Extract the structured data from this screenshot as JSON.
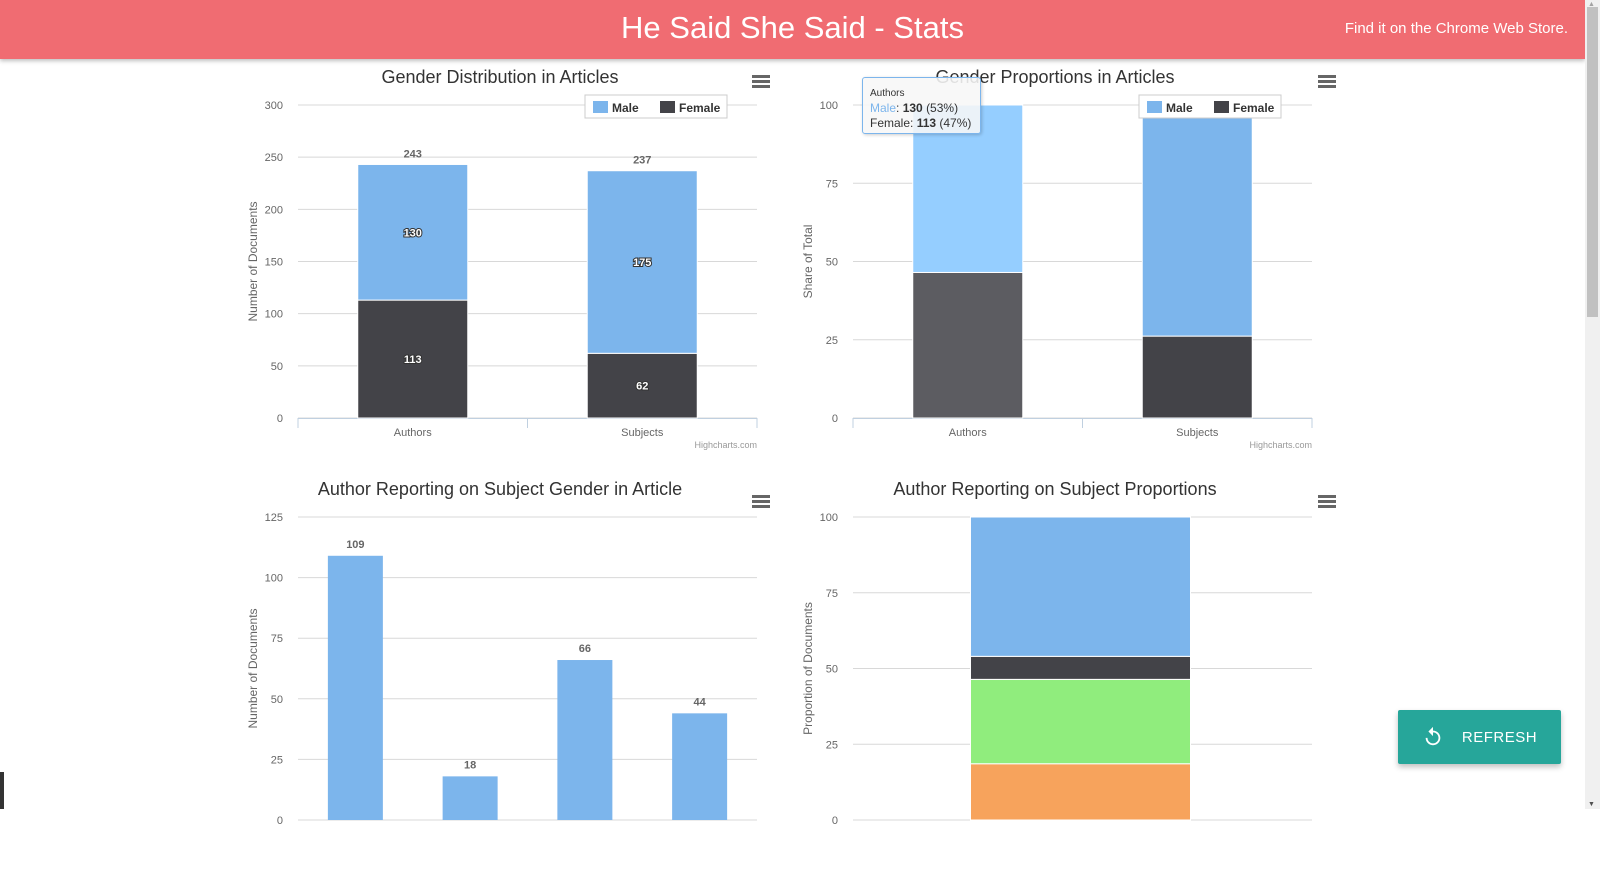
{
  "header": {
    "title": "He Said She Said - Stats",
    "store_link": "Find it on the Chrome Web Store."
  },
  "refresh_button": {
    "label": "REFRESH",
    "icon": "refresh-icon"
  },
  "credits": "Highcharts.com",
  "colors": {
    "header": "#f06c72",
    "male": "#7cb5ec",
    "female": "#434348",
    "green": "#90ed7d",
    "orange": "#f7a35c",
    "refresh": "#26a69a"
  },
  "tooltip": {
    "header": "Authors",
    "rows": [
      {
        "series": "Male",
        "value": "130",
        "pct": "(53%)"
      },
      {
        "series": "Female",
        "value": "113",
        "pct": "(47%)"
      }
    ]
  },
  "chart_data": [
    {
      "type": "bar",
      "stacking": "normal",
      "title": "Gender Distribution in Articles",
      "xlabel": "",
      "ylabel": "Number of Documents",
      "ylim": [
        0,
        300
      ],
      "yticks": [
        0,
        50,
        100,
        150,
        200,
        250,
        300
      ],
      "categories": [
        "Authors",
        "Subjects"
      ],
      "series": [
        {
          "name": "Male",
          "values": [
            130,
            175
          ]
        },
        {
          "name": "Female",
          "values": [
            113,
            62
          ]
        }
      ],
      "totals": [
        243,
        237
      ],
      "legend": "top-right",
      "grid": true
    },
    {
      "type": "bar",
      "stacking": "percent",
      "title": "Gender Proportions in Articles",
      "xlabel": "",
      "ylabel": "Share of Total",
      "ylim": [
        0,
        100
      ],
      "yticks": [
        0,
        25,
        50,
        75,
        100
      ],
      "categories": [
        "Authors",
        "Subjects"
      ],
      "series": [
        {
          "name": "Male",
          "values": [
            130,
            175
          ]
        },
        {
          "name": "Female",
          "values": [
            113,
            62
          ]
        }
      ],
      "legend": "top-right",
      "grid": true,
      "hovered_category": "Authors"
    },
    {
      "type": "bar",
      "title": "Author Reporting on Subject Gender in Article",
      "xlabel": "",
      "ylabel": "Number of Documents",
      "ylim": [
        0,
        125
      ],
      "yticks": [
        0,
        25,
        50,
        75,
        100,
        125
      ],
      "categories": [
        "",
        "",
        "",
        ""
      ],
      "values": [
        109,
        18,
        66,
        44
      ],
      "grid": true
    },
    {
      "type": "bar",
      "stacking": "percent",
      "title": "Author Reporting on Subject Proportions",
      "xlabel": "",
      "ylabel": "Proportion of Documents",
      "ylim": [
        0,
        100
      ],
      "yticks": [
        0,
        25,
        50,
        75,
        100
      ],
      "categories": [
        ""
      ],
      "series": [
        {
          "name": "blue",
          "values": [
            109
          ]
        },
        {
          "name": "dark",
          "values": [
            18
          ]
        },
        {
          "name": "green",
          "values": [
            66
          ]
        },
        {
          "name": "orange",
          "values": [
            44
          ]
        }
      ],
      "grid": true
    }
  ]
}
